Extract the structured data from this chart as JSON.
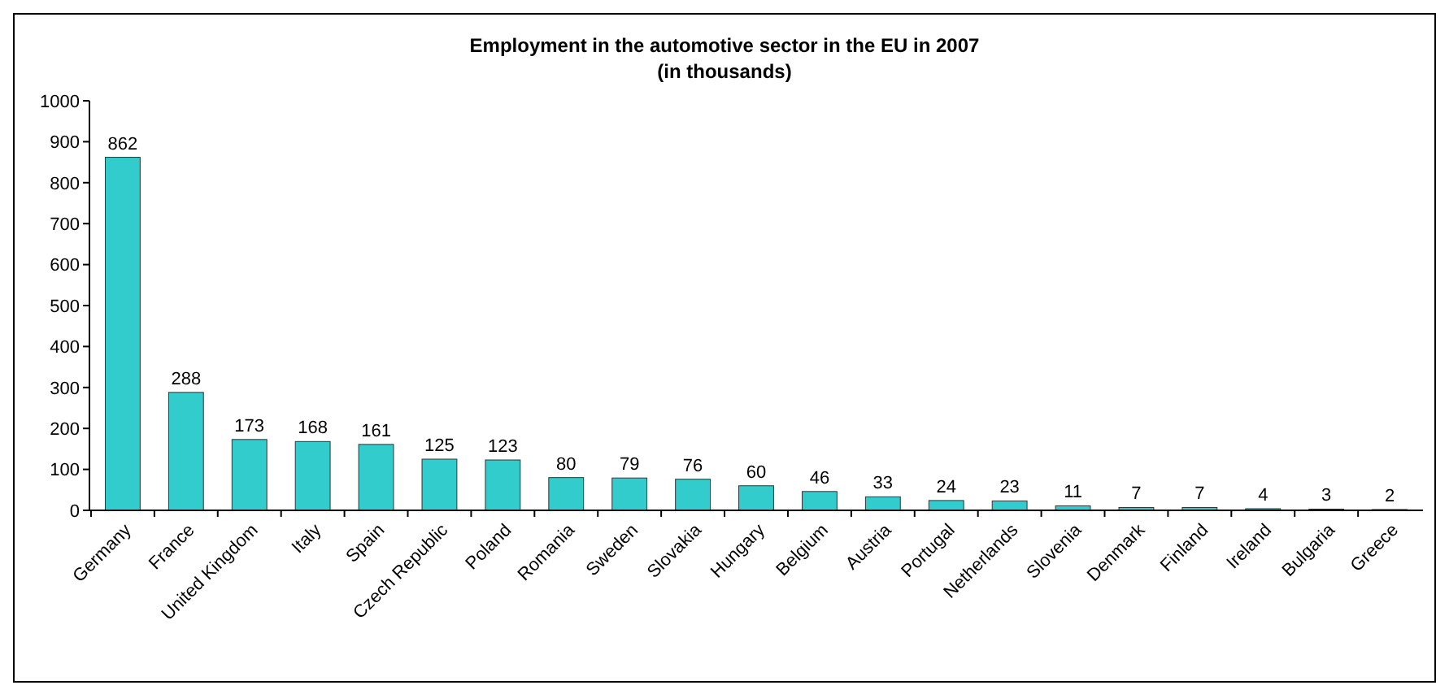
{
  "chart_data": {
    "type": "bar",
    "title": "Employment in the automotive sector in the EU in 2007",
    "subtitle": "(in thousands)",
    "categories": [
      "Germany",
      "France",
      "United Kingdom",
      "Italy",
      "Spain",
      "Czech Republic",
      "Poland",
      "Romania",
      "Sweden",
      "Slovakia",
      "Hungary",
      "Belgium",
      "Austria",
      "Portugal",
      "Netherlands",
      "Slovenia",
      "Denmark",
      "Finland",
      "Ireland",
      "Bulgaria",
      "Greece"
    ],
    "values": [
      862,
      288,
      173,
      168,
      161,
      125,
      123,
      80,
      79,
      76,
      60,
      46,
      33,
      24,
      23,
      11,
      7,
      7,
      4,
      3,
      2
    ],
    "color": "#33cccc",
    "ylim": [
      0,
      1000
    ],
    "yticks": [
      0,
      100,
      200,
      300,
      400,
      500,
      600,
      700,
      800,
      900,
      1000
    ],
    "grid": false,
    "data_labels": true
  }
}
